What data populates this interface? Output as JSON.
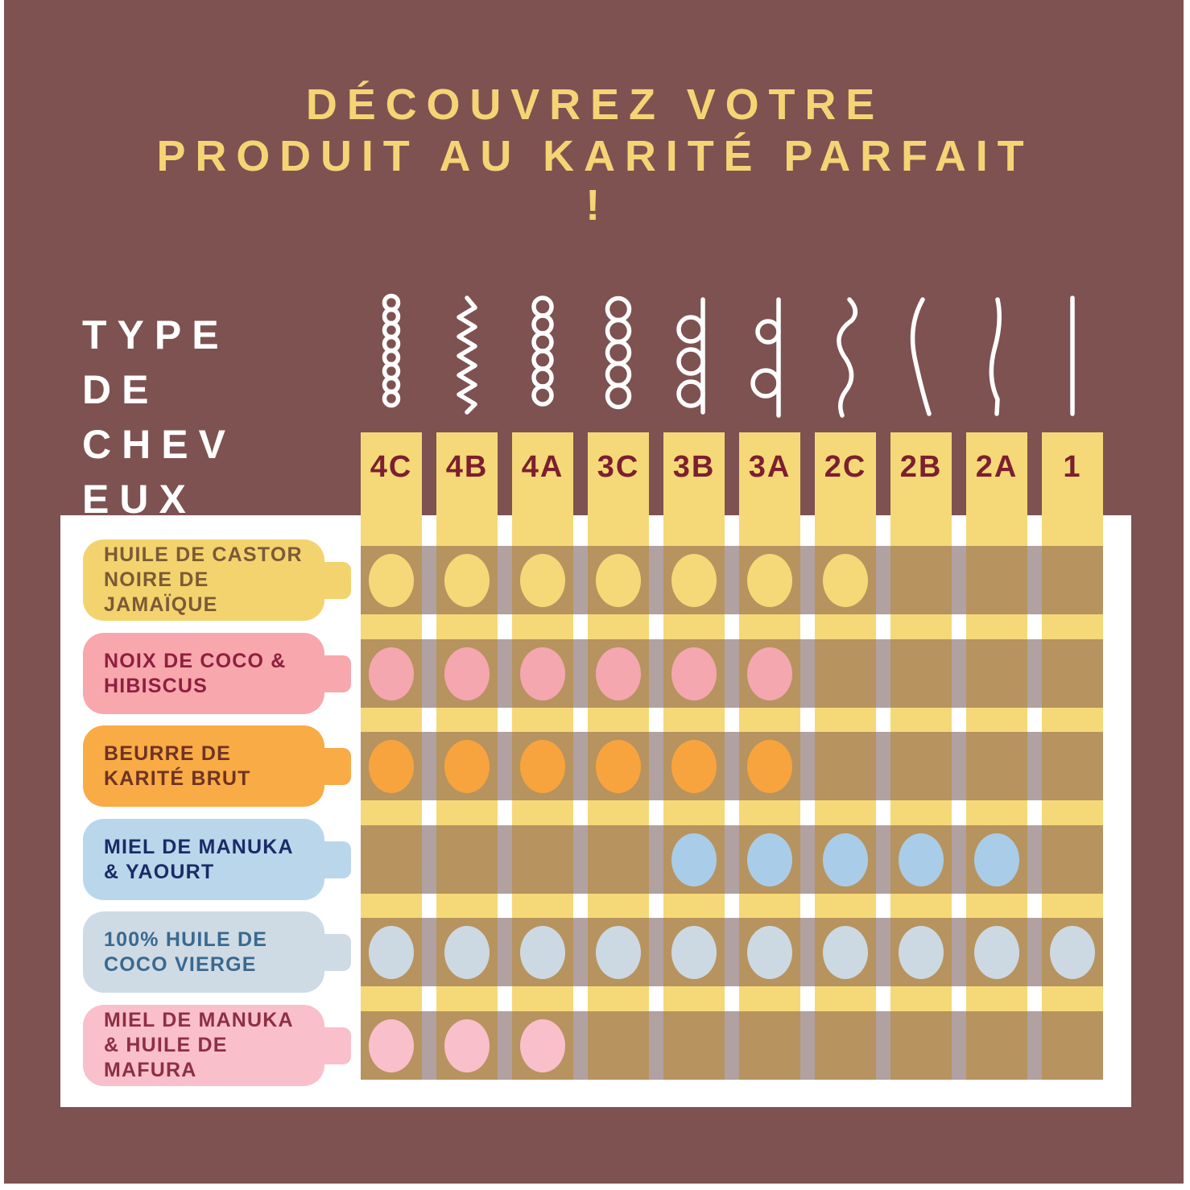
{
  "page": {
    "background_color": "#7E5251",
    "panel_color": "#FFFFFF",
    "border_color": "#FFFFFF"
  },
  "title": {
    "line1": "DÉCOUVREZ VOTRE",
    "line2": "PRODUIT AU KARITÉ PARFAIT",
    "line3": "!",
    "color": "#F4D474"
  },
  "hair_type_label": {
    "lines": [
      "TYPE",
      "DE",
      "CHEV",
      "EUX"
    ],
    "color": "#FFFFFF"
  },
  "grid": {
    "column_band_color": "#F5D979",
    "row_strip_color": "#B6935F",
    "column_gap_color": "#B2A1A1",
    "header_text_color": "#7C1F2E",
    "curl_color": "#FFFFFF",
    "columns": [
      {
        "label": "4C",
        "icon": "curl-coil-tight-icon"
      },
      {
        "label": "4B",
        "icon": "curl-zigzag-icon"
      },
      {
        "label": "4A",
        "icon": "curl-coil-small-icon"
      },
      {
        "label": "3C",
        "icon": "curl-corkscrew-icon"
      },
      {
        "label": "3B",
        "icon": "curl-loops-icon"
      },
      {
        "label": "3A",
        "icon": "curl-loose-loops-icon"
      },
      {
        "label": "2C",
        "icon": "wave-strong-icon"
      },
      {
        "label": "2B",
        "icon": "wave-soft-icon"
      },
      {
        "label": "2A",
        "icon": "wave-subtle-icon"
      },
      {
        "label": "1",
        "icon": "straight-hair-icon"
      }
    ],
    "rows": [
      {
        "label_lines": [
          "HUILE DE CASTOR",
          "NOIRE DE JAMAÏQUE"
        ],
        "label_bg": "#F2D36E",
        "label_text_color": "#7B5A35",
        "dot_color": "#F5D979",
        "marks": [
          "4C",
          "4B",
          "4A",
          "3C",
          "3B",
          "3A",
          "2C"
        ]
      },
      {
        "label_lines": [
          "NOIX DE COCO &",
          "HIBISCUS"
        ],
        "label_bg": "#F8A8AC",
        "label_text_color": "#8E1F3E",
        "dot_color": "#F4A7AE",
        "marks": [
          "4C",
          "4B",
          "4A",
          "3C",
          "3B",
          "3A"
        ]
      },
      {
        "label_lines": [
          "BEURRE DE",
          "KARITÉ BRUT"
        ],
        "label_bg": "#F9AB45",
        "label_text_color": "#6E3423",
        "dot_color": "#F8A43E",
        "marks": [
          "4C",
          "4B",
          "4A",
          "3C",
          "3B",
          "3A"
        ]
      },
      {
        "label_lines": [
          "MIEL DE MANUKA",
          "& YAOURT"
        ],
        "label_bg": "#B9D6EB",
        "label_text_color": "#1B2B66",
        "dot_color": "#A9CDE8",
        "marks": [
          "3B",
          "3A",
          "2C",
          "2B",
          "2A"
        ]
      },
      {
        "label_lines": [
          "100% HUILE DE",
          "COCO VIERGE"
        ],
        "label_bg": "#CFDBE4",
        "label_text_color": "#3A698F",
        "dot_color": "#CCD9E2",
        "marks": [
          "4C",
          "4B",
          "4A",
          "3C",
          "3B",
          "3A",
          "2C",
          "2B",
          "2A",
          "1"
        ]
      },
      {
        "label_lines": [
          "MIEL DE MANUKA",
          "& HUILE DE MAFURA"
        ],
        "label_bg": "#F9C0CC",
        "label_text_color": "#8E2F44",
        "dot_color": "#F9BFCA",
        "marks": [
          "4C",
          "4B",
          "4A"
        ]
      }
    ]
  },
  "chart_data": {
    "type": "table",
    "title": "DÉCOUVREZ VOTRE PRODUIT AU KARITÉ PARFAIT !",
    "column_axis_label": "TYPE DE CHEVEUX",
    "columns": [
      "4C",
      "4B",
      "4A",
      "3C",
      "3B",
      "3A",
      "2C",
      "2B",
      "2A",
      "1"
    ],
    "rows": [
      {
        "name": "HUILE DE CASTOR NOIRE DE JAMAÏQUE",
        "compatible_types": [
          "4C",
          "4B",
          "4A",
          "3C",
          "3B",
          "3A",
          "2C"
        ]
      },
      {
        "name": "NOIX DE COCO & HIBISCUS",
        "compatible_types": [
          "4C",
          "4B",
          "4A",
          "3C",
          "3B",
          "3A"
        ]
      },
      {
        "name": "BEURRE DE KARITÉ BRUT",
        "compatible_types": [
          "4C",
          "4B",
          "4A",
          "3C",
          "3B",
          "3A"
        ]
      },
      {
        "name": "MIEL DE MANUKA & YAOURT",
        "compatible_types": [
          "3B",
          "3A",
          "2C",
          "2B",
          "2A"
        ]
      },
      {
        "name": "100% HUILE DE COCO VIERGE",
        "compatible_types": [
          "4C",
          "4B",
          "4A",
          "3C",
          "3B",
          "3A",
          "2C",
          "2B",
          "2A",
          "1"
        ]
      },
      {
        "name": "MIEL DE MANUKA & HUILE DE MAFURA",
        "compatible_types": [
          "4C",
          "4B",
          "4A"
        ]
      }
    ],
    "legend_position": "none",
    "grid": "matrix"
  }
}
